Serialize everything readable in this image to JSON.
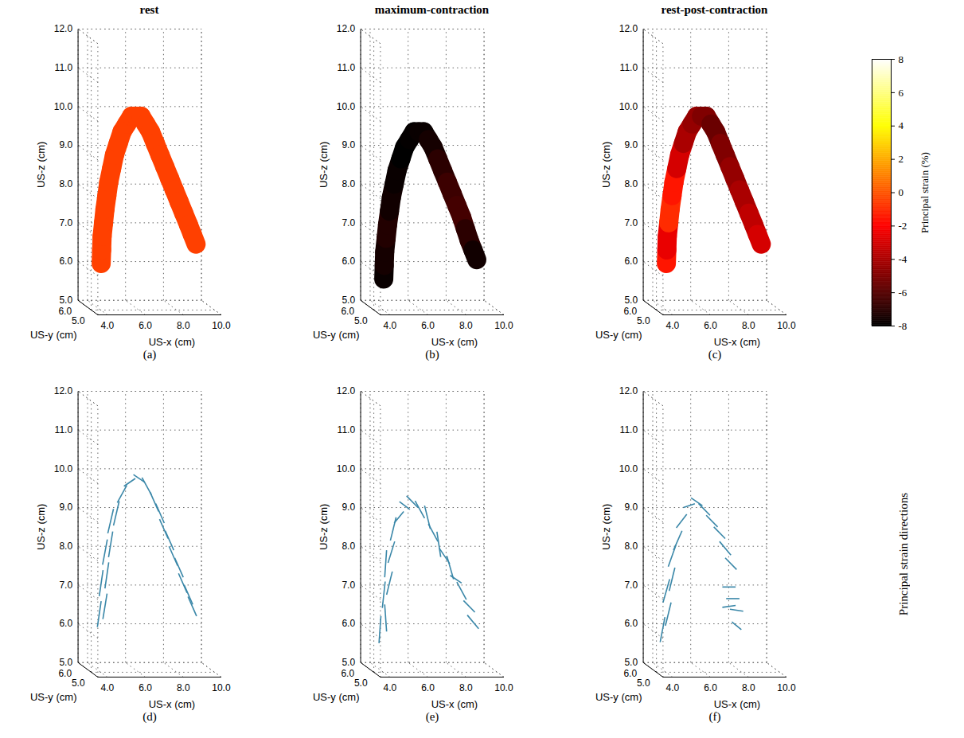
{
  "chart_data": {
    "type": "3d_panels",
    "xlabel": "US-x (cm)",
    "ylabel": "US-y (cm)",
    "zlabel": "US-z (cm)",
    "xlim": [
      3.5,
      10.0
    ],
    "ylim": [
      4.5,
      6.0
    ],
    "zlim": [
      5.0,
      12.0
    ],
    "xticks": [
      {
        "value": 4,
        "label": "4.0"
      },
      {
        "value": 6,
        "label": "6.0"
      },
      {
        "value": 8,
        "label": "8.0"
      },
      {
        "value": 10,
        "label": "10.0"
      }
    ],
    "yticks": [
      {
        "value": 5,
        "label": "5.0"
      },
      {
        "value": 6,
        "label": "6.0"
      }
    ],
    "zticks": [
      {
        "value": 5,
        "label": "5.0"
      },
      {
        "value": 6,
        "label": "6.0"
      },
      {
        "value": 7,
        "label": "7.0"
      },
      {
        "value": 8,
        "label": "8.0"
      },
      {
        "value": 9,
        "label": "9.0"
      },
      {
        "value": 10,
        "label": "10.0"
      },
      {
        "value": 11,
        "label": "11.0"
      },
      {
        "value": 12,
        "label": "12.0"
      }
    ],
    "grid": true,
    "colorbar": {
      "label": "Principal strain (%)",
      "lim": [
        -8,
        8
      ],
      "ticks": [
        -8,
        -6,
        -4,
        -2,
        0,
        2,
        4,
        6,
        8
      ],
      "colors": [
        "#000000",
        "#550000",
        "#aa0000",
        "#ff0000",
        "#ff5500",
        "#ffaa00",
        "#ffff00",
        "#ffff80",
        "#ffffff"
      ]
    },
    "side_label": "Principal strain directions",
    "panels": [
      {
        "type": "surface",
        "title": "rest",
        "label": "(a)",
        "x": [
          4.3,
          4.35,
          4.5,
          4.7,
          5.0,
          5.4,
          5.9,
          6.4,
          6.9,
          7.4,
          7.9,
          8.4,
          8.9,
          9.3
        ],
        "y": [
          5.4,
          5.4,
          5.4,
          5.4,
          5.4,
          5.4,
          5.4,
          5.4,
          5.4,
          5.4,
          5.4,
          5.4,
          5.4,
          5.4
        ],
        "z": [
          6.1,
          6.8,
          7.5,
          8.2,
          8.9,
          9.5,
          9.9,
          9.9,
          9.5,
          8.9,
          8.3,
          7.7,
          7.1,
          6.6
        ],
        "strain": [
          -0.5,
          -0.5,
          -0.5,
          -0.5,
          -0.5,
          -0.5,
          -0.5,
          -0.5,
          -0.5,
          -0.5,
          -0.5,
          -0.5,
          -0.5,
          -0.5
        ]
      },
      {
        "type": "surface",
        "title": "maximum-contraction",
        "label": "(b)",
        "x": [
          4.3,
          4.35,
          4.5,
          4.7,
          5.0,
          5.4,
          5.9,
          6.4,
          6.9,
          7.4,
          7.9,
          8.4,
          8.8,
          9.2
        ],
        "y": [
          5.4,
          5.4,
          5.4,
          5.4,
          5.4,
          5.4,
          5.4,
          5.4,
          5.4,
          5.4,
          5.4,
          5.4,
          5.4,
          5.4
        ],
        "z": [
          5.7,
          6.4,
          7.1,
          7.8,
          8.5,
          9.1,
          9.5,
          9.5,
          9.1,
          8.5,
          7.9,
          7.3,
          6.7,
          6.2
        ],
        "strain": [
          -7.8,
          -7.5,
          -7.2,
          -7.6,
          -7.8,
          -8.0,
          -7.9,
          -7.8,
          -7.5,
          -7.0,
          -6.6,
          -6.4,
          -7.0,
          -7.6
        ]
      },
      {
        "type": "surface",
        "title": "rest-post-contraction",
        "label": "(c)",
        "x": [
          4.3,
          4.35,
          4.5,
          4.7,
          5.0,
          5.4,
          5.9,
          6.4,
          6.9,
          7.4,
          7.9,
          8.4,
          8.9,
          9.3
        ],
        "y": [
          5.4,
          5.4,
          5.4,
          5.4,
          5.4,
          5.4,
          5.4,
          5.4,
          5.4,
          5.4,
          5.4,
          5.4,
          5.4,
          5.4
        ],
        "z": [
          6.1,
          6.8,
          7.5,
          8.2,
          8.9,
          9.5,
          9.9,
          9.9,
          9.5,
          8.9,
          8.3,
          7.7,
          7.1,
          6.6
        ],
        "strain": [
          -1.5,
          -2.5,
          -1.0,
          -1.5,
          -3.0,
          -4.0,
          -4.5,
          -5.0,
          -5.5,
          -5.0,
          -4.5,
          -4.0,
          -3.5,
          -3.0
        ]
      },
      {
        "type": "quiver",
        "label": "(d)",
        "color": "#3a87a8",
        "x": [
          4.2,
          4.5,
          4.3,
          4.6,
          4.5,
          4.8,
          4.8,
          5.1,
          5.4,
          5.8,
          6.3,
          6.7,
          7.1,
          7.4,
          7.6,
          7.9,
          8.1,
          8.4,
          8.6,
          8.9,
          9.1
        ],
        "y": [
          5.4,
          5.4,
          5.4,
          5.4,
          5.4,
          5.4,
          5.4,
          5.4,
          5.4,
          5.4,
          5.4,
          5.4,
          5.4,
          5.4,
          5.4,
          5.4,
          5.4,
          5.4,
          5.4,
          5.4,
          5.4
        ],
        "z": [
          6.4,
          6.6,
          7.2,
          7.4,
          8.0,
          8.2,
          8.8,
          9.0,
          9.5,
          9.8,
          9.9,
          9.7,
          9.3,
          9.0,
          8.6,
          8.3,
          7.9,
          7.6,
          7.2,
          6.9,
          6.6
        ],
        "dx": [
          0.2,
          0.22,
          0.2,
          0.2,
          0.25,
          0.22,
          0.3,
          0.3,
          0.5,
          0.6,
          0.6,
          0.5,
          0.45,
          0.45,
          0.45,
          0.45,
          0.45,
          0.45,
          0.45,
          0.45,
          0.45
        ],
        "dy": [
          0,
          0,
          0,
          0,
          0,
          0,
          0,
          0,
          0,
          0,
          0,
          0,
          0,
          0,
          0,
          0,
          0,
          0,
          0,
          0,
          0
        ],
        "dz": [
          0.67,
          0.66,
          0.67,
          0.67,
          0.65,
          0.66,
          0.63,
          0.63,
          0.45,
          0.2,
          -0.2,
          -0.45,
          -0.5,
          -0.5,
          -0.5,
          -0.5,
          -0.5,
          -0.5,
          -0.5,
          -0.5,
          -0.5
        ]
      },
      {
        "type": "quiver",
        "label": "(e)",
        "color": "#3a87a8",
        "x": [
          4.1,
          4.4,
          4.3,
          4.6,
          4.4,
          4.7,
          4.8,
          5.1,
          5.4,
          5.8,
          6.2,
          6.6,
          6.9,
          7.2,
          7.5,
          7.8,
          8.1,
          8.4,
          8.8,
          9.0
        ],
        "y": [
          5.4,
          5.4,
          5.4,
          5.4,
          5.4,
          5.4,
          5.4,
          5.4,
          5.4,
          5.4,
          5.4,
          5.4,
          5.4,
          5.4,
          5.4,
          5.4,
          5.4,
          5.4,
          5.4,
          5.4
        ],
        "z": [
          6.0,
          6.3,
          6.9,
          7.2,
          7.7,
          8.0,
          8.6,
          8.9,
          9.2,
          9.3,
          9.1,
          8.9,
          8.5,
          8.2,
          7.9,
          7.6,
          7.3,
          7.0,
          6.6,
          6.2
        ],
        "dx": [
          0.1,
          -0.1,
          0.15,
          0.3,
          0.1,
          0.35,
          0.3,
          0.5,
          0.55,
          0.6,
          0.5,
          0.3,
          0.5,
          0.2,
          0.55,
          0.35,
          0.6,
          0.5,
          0.6,
          0.6
        ],
        "dy": [
          0,
          0,
          0,
          0,
          0,
          0,
          0,
          0,
          0,
          0,
          0,
          0,
          0,
          0,
          0,
          0,
          0,
          0,
          0,
          0
        ],
        "dz": [
          0.7,
          0.7,
          0.68,
          0.6,
          0.7,
          0.55,
          0.6,
          0.3,
          -0.2,
          -0.3,
          -0.45,
          -0.6,
          -0.45,
          -0.65,
          -0.4,
          -0.6,
          -0.2,
          -0.45,
          -0.3,
          -0.35
        ]
      },
      {
        "type": "quiver",
        "label": "(f)",
        "color": "#3a87a8",
        "x": [
          4.1,
          4.4,
          4.3,
          4.6,
          4.6,
          4.9,
          5.1,
          5.5,
          5.9,
          6.3,
          6.7,
          7.1,
          7.4,
          7.7,
          7.6,
          7.8,
          7.6,
          8.0,
          8.0
        ],
        "y": [
          5.4,
          5.4,
          5.4,
          5.4,
          5.4,
          5.4,
          5.4,
          5.4,
          5.4,
          5.4,
          5.4,
          5.4,
          5.4,
          5.4,
          5.4,
          5.4,
          5.4,
          5.4,
          5.4
        ],
        "z": [
          6.0,
          6.4,
          7.0,
          7.3,
          7.9,
          8.3,
          8.8,
          9.2,
          9.3,
          9.1,
          8.8,
          8.5,
          8.1,
          7.7,
          7.1,
          6.8,
          6.6,
          6.5,
          6.1
        ],
        "dx": [
          0.25,
          0.3,
          0.35,
          0.3,
          0.4,
          0.45,
          0.55,
          0.6,
          0.6,
          0.6,
          0.6,
          0.6,
          0.6,
          0.6,
          0.7,
          0.7,
          0.7,
          0.7,
          0.5
        ],
        "dy": [
          0,
          0,
          0,
          0,
          0,
          0,
          0,
          0,
          0,
          0,
          0,
          0,
          0,
          0,
          0,
          0,
          0,
          0,
          0
        ],
        "dz": [
          0.65,
          0.6,
          0.6,
          0.6,
          0.55,
          0.5,
          0.35,
          0.1,
          -0.2,
          -0.3,
          -0.3,
          -0.3,
          -0.35,
          -0.3,
          0.0,
          0.0,
          0.05,
          -0.05,
          -0.2
        ]
      }
    ]
  }
}
